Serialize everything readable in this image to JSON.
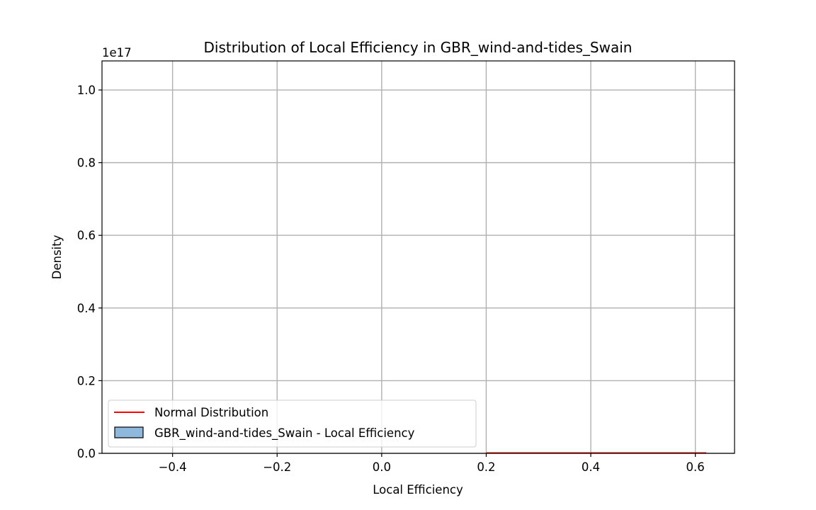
{
  "chart_data": {
    "type": "histogram",
    "title": "Distribution of Local Efficiency in GBR_wind-and-tides_Swain",
    "xlabel": "Local Efficiency",
    "ylabel": "Density",
    "y_offset_text": "1e17",
    "xlim": [
      -0.535,
      0.675
    ],
    "ylim": [
      0,
      1.08
    ],
    "y_scale_multiplier": 1e+17,
    "xticks": [
      -0.4,
      -0.2,
      0.0,
      0.2,
      0.4,
      0.6
    ],
    "xtick_labels": [
      "−0.4",
      "−0.2",
      "0.0",
      "0.2",
      "0.4",
      "0.6"
    ],
    "yticks": [
      0.0,
      0.2,
      0.4,
      0.6,
      0.8,
      1.0
    ],
    "ytick_labels": [
      "0.0",
      "0.2",
      "0.4",
      "0.6",
      "0.8",
      "1.0"
    ],
    "grid": true,
    "legend_position": "lower-left",
    "series": [
      {
        "name": "Normal Distribution",
        "kind": "line",
        "color": "#ff0000",
        "x": [
          0.2,
          0.62
        ],
        "y": [
          0,
          0
        ]
      },
      {
        "name": "GBR_wind-and-tides_Swain - Local Efficiency",
        "kind": "histogram",
        "color": "#1f77b4",
        "alpha": 0.5,
        "edgecolor": "#000000",
        "bins": [
          {
            "x0": 0.3,
            "x1": 0.62,
            "value": 0
          }
        ]
      }
    ],
    "colors": {
      "grid": "#b0b0b0",
      "axes": "#000000",
      "hist_fill": "#8fb8dd",
      "line": "#ff0000"
    }
  }
}
